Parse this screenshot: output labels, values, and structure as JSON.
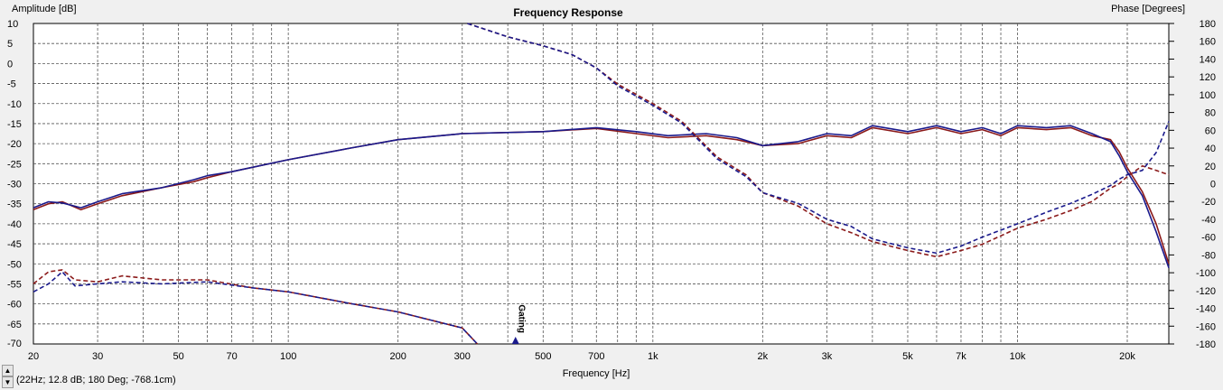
{
  "chart_data": {
    "type": "line",
    "title": "Frequency Response",
    "xlabel": "Frequency [Hz]",
    "ylabel_left": "Amplitude [dB]",
    "ylabel_right": "Phase [Degrees]",
    "x_scale": "log",
    "xlim": [
      20,
      26000
    ],
    "ylim_left": [
      -70,
      10
    ],
    "ylim_right": [
      -180,
      180
    ],
    "grid": true,
    "x_tick_labels": [
      {
        "value": 20,
        "label": "20"
      },
      {
        "value": 30,
        "label": "30"
      },
      {
        "value": 50,
        "label": "50"
      },
      {
        "value": 70,
        "label": "70"
      },
      {
        "value": 100,
        "label": "100"
      },
      {
        "value": 200,
        "label": "200"
      },
      {
        "value": 300,
        "label": "300"
      },
      {
        "value": 500,
        "label": "500"
      },
      {
        "value": 700,
        "label": "700"
      },
      {
        "value": 1000,
        "label": "1k"
      },
      {
        "value": 2000,
        "label": "2k"
      },
      {
        "value": 3000,
        "label": "3k"
      },
      {
        "value": 5000,
        "label": "5k"
      },
      {
        "value": 7000,
        "label": "7k"
      },
      {
        "value": 10000,
        "label": "10k"
      },
      {
        "value": 20000,
        "label": "20k"
      }
    ],
    "y_left_ticks": [
      10,
      5,
      0,
      -5,
      -10,
      -15,
      -20,
      -25,
      -30,
      -35,
      -40,
      -45,
      -50,
      -55,
      -60,
      -65,
      -70
    ],
    "y_right_ticks": [
      180,
      160,
      140,
      120,
      100,
      80,
      60,
      40,
      20,
      0,
      -20,
      -40,
      -60,
      -80,
      -100,
      -120,
      -140,
      -160,
      -180
    ],
    "marker": {
      "label": "Gating",
      "x": 420,
      "color": "#1a1a8c"
    },
    "series": [
      {
        "axis": "left",
        "style": "solid",
        "color": "#8b1a1a",
        "points": [
          [
            20,
            -36.5
          ],
          [
            22,
            -35
          ],
          [
            24,
            -34.5
          ],
          [
            27,
            -36.5
          ],
          [
            30,
            -35
          ],
          [
            35,
            -33
          ],
          [
            45,
            -31
          ],
          [
            55,
            -29.5
          ],
          [
            60,
            -28.5
          ],
          [
            70,
            -27
          ],
          [
            100,
            -24
          ],
          [
            150,
            -21
          ],
          [
            200,
            -19
          ],
          [
            300,
            -17.5
          ],
          [
            500,
            -17
          ],
          [
            700,
            -16.2
          ],
          [
            900,
            -17.5
          ],
          [
            1100,
            -18.5
          ],
          [
            1400,
            -18
          ],
          [
            1700,
            -19
          ],
          [
            2000,
            -20.5
          ],
          [
            2500,
            -20
          ],
          [
            3000,
            -18
          ],
          [
            3500,
            -18.5
          ],
          [
            4000,
            -16
          ],
          [
            5000,
            -17.5
          ],
          [
            6000,
            -16
          ],
          [
            7000,
            -17.5
          ],
          [
            8000,
            -16.5
          ],
          [
            9000,
            -18
          ],
          [
            10000,
            -16
          ],
          [
            12000,
            -16.5
          ],
          [
            14000,
            -16
          ],
          [
            16000,
            -18
          ],
          [
            18000,
            -19
          ],
          [
            19000,
            -22
          ],
          [
            20000,
            -26
          ],
          [
            22000,
            -32
          ],
          [
            24000,
            -40
          ],
          [
            26000,
            -50
          ]
        ]
      },
      {
        "axis": "left",
        "style": "solid",
        "color": "#1a1a8c",
        "points": [
          [
            20,
            -36
          ],
          [
            22,
            -34.5
          ],
          [
            24,
            -34.8
          ],
          [
            27,
            -36
          ],
          [
            30,
            -34.5
          ],
          [
            35,
            -32.5
          ],
          [
            45,
            -31
          ],
          [
            55,
            -29
          ],
          [
            60,
            -28
          ],
          [
            70,
            -27
          ],
          [
            100,
            -24
          ],
          [
            150,
            -21
          ],
          [
            200,
            -19
          ],
          [
            300,
            -17.5
          ],
          [
            500,
            -17
          ],
          [
            700,
            -16
          ],
          [
            900,
            -17
          ],
          [
            1100,
            -18
          ],
          [
            1400,
            -17.5
          ],
          [
            1700,
            -18.5
          ],
          [
            2000,
            -20.5
          ],
          [
            2500,
            -19.5
          ],
          [
            3000,
            -17.5
          ],
          [
            3500,
            -18
          ],
          [
            4000,
            -15.5
          ],
          [
            5000,
            -17
          ],
          [
            6000,
            -15.5
          ],
          [
            7000,
            -17
          ],
          [
            8000,
            -16
          ],
          [
            9000,
            -17.5
          ],
          [
            10000,
            -15.5
          ],
          [
            12000,
            -16
          ],
          [
            14000,
            -15.5
          ],
          [
            16000,
            -17.5
          ],
          [
            18000,
            -19.5
          ],
          [
            19000,
            -23
          ],
          [
            20000,
            -27
          ],
          [
            22000,
            -33
          ],
          [
            24000,
            -42
          ],
          [
            26000,
            -51
          ]
        ]
      },
      {
        "axis": "left",
        "style": "dashed",
        "color": "#8b1a1a",
        "points": [
          [
            20,
            -55
          ],
          [
            22,
            -52
          ],
          [
            24,
            -51.5
          ],
          [
            26,
            -54
          ],
          [
            30,
            -54.5
          ],
          [
            35,
            -53
          ],
          [
            45,
            -54
          ],
          [
            60,
            -54
          ],
          [
            80,
            -56
          ],
          [
            100,
            -57
          ],
          [
            150,
            -60
          ],
          [
            200,
            -62
          ],
          [
            300,
            -66
          ],
          [
            330,
            -70
          ]
        ]
      },
      {
        "axis": "left",
        "style": "dashed",
        "color": "#1a1a8c",
        "points": [
          [
            20,
            -57
          ],
          [
            22,
            -55
          ],
          [
            24,
            -52
          ],
          [
            26,
            -55.5
          ],
          [
            30,
            -55
          ],
          [
            35,
            -54.5
          ],
          [
            45,
            -55
          ],
          [
            60,
            -54.5
          ],
          [
            80,
            -56
          ],
          [
            100,
            -57
          ],
          [
            150,
            -60
          ],
          [
            200,
            -62
          ],
          [
            300,
            -66
          ],
          [
            330,
            -70
          ]
        ]
      },
      {
        "axis": "right",
        "style": "dashed",
        "color": "#8b1a1a",
        "points": [
          [
            310,
            180
          ],
          [
            400,
            165
          ],
          [
            500,
            155
          ],
          [
            600,
            145
          ],
          [
            700,
            130
          ],
          [
            800,
            112
          ],
          [
            1000,
            90
          ],
          [
            1200,
            70
          ],
          [
            1500,
            30
          ],
          [
            1800,
            10
          ],
          [
            2000,
            -10
          ],
          [
            2500,
            -25
          ],
          [
            3000,
            -45
          ],
          [
            3500,
            -55
          ],
          [
            4000,
            -65
          ],
          [
            5000,
            -75
          ],
          [
            6000,
            -82
          ],
          [
            7000,
            -75
          ],
          [
            8000,
            -68
          ],
          [
            10000,
            -50
          ],
          [
            12000,
            -40
          ],
          [
            14000,
            -30
          ],
          [
            16000,
            -20
          ],
          [
            18000,
            -5
          ],
          [
            19000,
            0
          ],
          [
            20000,
            8
          ],
          [
            22000,
            20
          ],
          [
            24000,
            15
          ],
          [
            26000,
            10
          ]
        ]
      },
      {
        "axis": "right",
        "style": "dashed",
        "color": "#1a1a8c",
        "points": [
          [
            310,
            180
          ],
          [
            400,
            165
          ],
          [
            500,
            155
          ],
          [
            600,
            145
          ],
          [
            700,
            130
          ],
          [
            800,
            110
          ],
          [
            1000,
            88
          ],
          [
            1200,
            68
          ],
          [
            1500,
            28
          ],
          [
            1800,
            8
          ],
          [
            2000,
            -10
          ],
          [
            2500,
            -22
          ],
          [
            3000,
            -40
          ],
          [
            3500,
            -48
          ],
          [
            4000,
            -62
          ],
          [
            5000,
            -72
          ],
          [
            6000,
            -78
          ],
          [
            7000,
            -70
          ],
          [
            8000,
            -60
          ],
          [
            10000,
            -45
          ],
          [
            12000,
            -32
          ],
          [
            14000,
            -22
          ],
          [
            16000,
            -12
          ],
          [
            18000,
            -2
          ],
          [
            19000,
            5
          ],
          [
            20000,
            10
          ],
          [
            22000,
            15
          ],
          [
            24000,
            35
          ],
          [
            26000,
            70
          ]
        ]
      }
    ]
  },
  "status": {
    "readout": "(22Hz; 12.8 dB; 180 Deg; -768.1cm)",
    "up_arrow": "▲",
    "down_arrow": "▼"
  }
}
